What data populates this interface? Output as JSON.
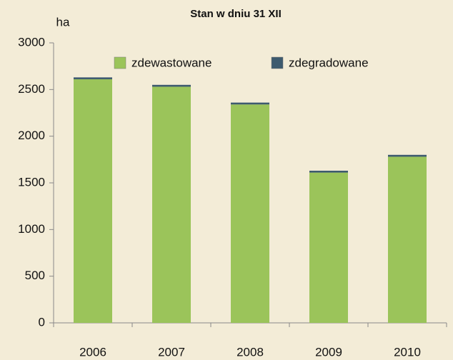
{
  "chart_data": {
    "type": "stacked_bar",
    "subtitle": "Stan w dniu 31 XII",
    "y_label": "ha",
    "categories": [
      "2006",
      "2007",
      "2008",
      "2009",
      "2010"
    ],
    "series": [
      {
        "name": "zdewastowane",
        "color": "#9bc45a",
        "values": [
          2610,
          2530,
          2340,
          1610,
          1780
        ]
      },
      {
        "name": "zdegradowane",
        "color": "#3d5a6e",
        "values": [
          20,
          20,
          20,
          20,
          20
        ]
      }
    ],
    "ylim": [
      0,
      3000
    ],
    "yticks": [
      0,
      500,
      1000,
      1500,
      2000,
      2500,
      3000
    ],
    "grid": false,
    "legend": "top"
  }
}
